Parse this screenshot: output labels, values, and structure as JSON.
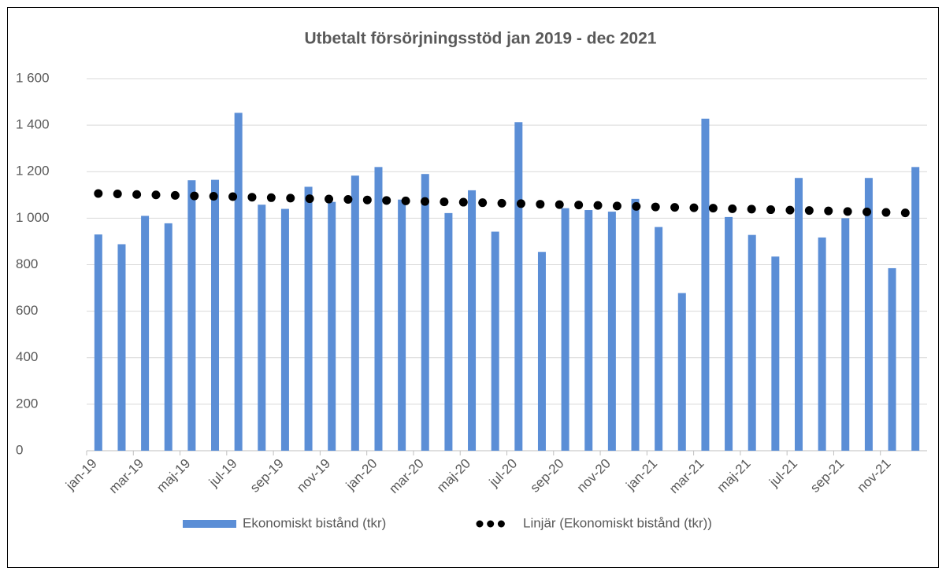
{
  "chart_data": {
    "type": "bar",
    "title": "Utbetalt försörjningsstöd jan 2019 - dec 2021",
    "categories": [
      "jan-19",
      null,
      "mar-19",
      null,
      "maj-19",
      null,
      "jul-19",
      null,
      "sep-19",
      null,
      "nov-19",
      null,
      "jan-20",
      null,
      "mar-20",
      null,
      "maj-20",
      null,
      "jul-20",
      null,
      "sep-20",
      null,
      "nov-20",
      null,
      "jan-21",
      null,
      "mar-21",
      null,
      "maj-21",
      null,
      "jul-21",
      null,
      "sep-21",
      null,
      "nov-21",
      null
    ],
    "series": [
      {
        "name": "Ekonomiskt bistånd  (tkr)",
        "color": "#5b8ed6",
        "values": [
          930,
          888,
          1010,
          978,
          1163,
          1165,
          1453,
          1058,
          1040,
          1135,
          1070,
          1183,
          1220,
          1080,
          1190,
          1022,
          1120,
          942,
          1413,
          855,
          1043,
          1035,
          1028,
          1083,
          962,
          678,
          1428,
          1005,
          928,
          835,
          1173,
          917,
          1000,
          1173,
          785,
          1220
        ]
      },
      {
        "name": "Linjär (Ekonomiskt bistånd  (tkr))",
        "color": "#000000",
        "type": "trendline",
        "values": [
          1106,
          1104,
          1101,
          1099,
          1096,
          1094,
          1092,
          1089,
          1087,
          1084,
          1082,
          1080,
          1077,
          1075,
          1072,
          1070,
          1068,
          1065,
          1063,
          1060,
          1058,
          1056,
          1053,
          1051,
          1048,
          1046,
          1044,
          1041,
          1039,
          1036,
          1034,
          1032,
          1029,
          1027,
          1024,
          1022
        ]
      }
    ],
    "ylim": [
      0,
      1600
    ],
    "yticks": [
      0,
      200,
      400,
      600,
      800,
      {
        "value": 1000,
        "label": "1 000"
      },
      {
        "value": 1200,
        "label": "1 200"
      },
      {
        "value": 1400,
        "label": "1 400"
      },
      {
        "value": 1600,
        "label": "1 600"
      }
    ],
    "grid": true,
    "legend": "bottom"
  }
}
